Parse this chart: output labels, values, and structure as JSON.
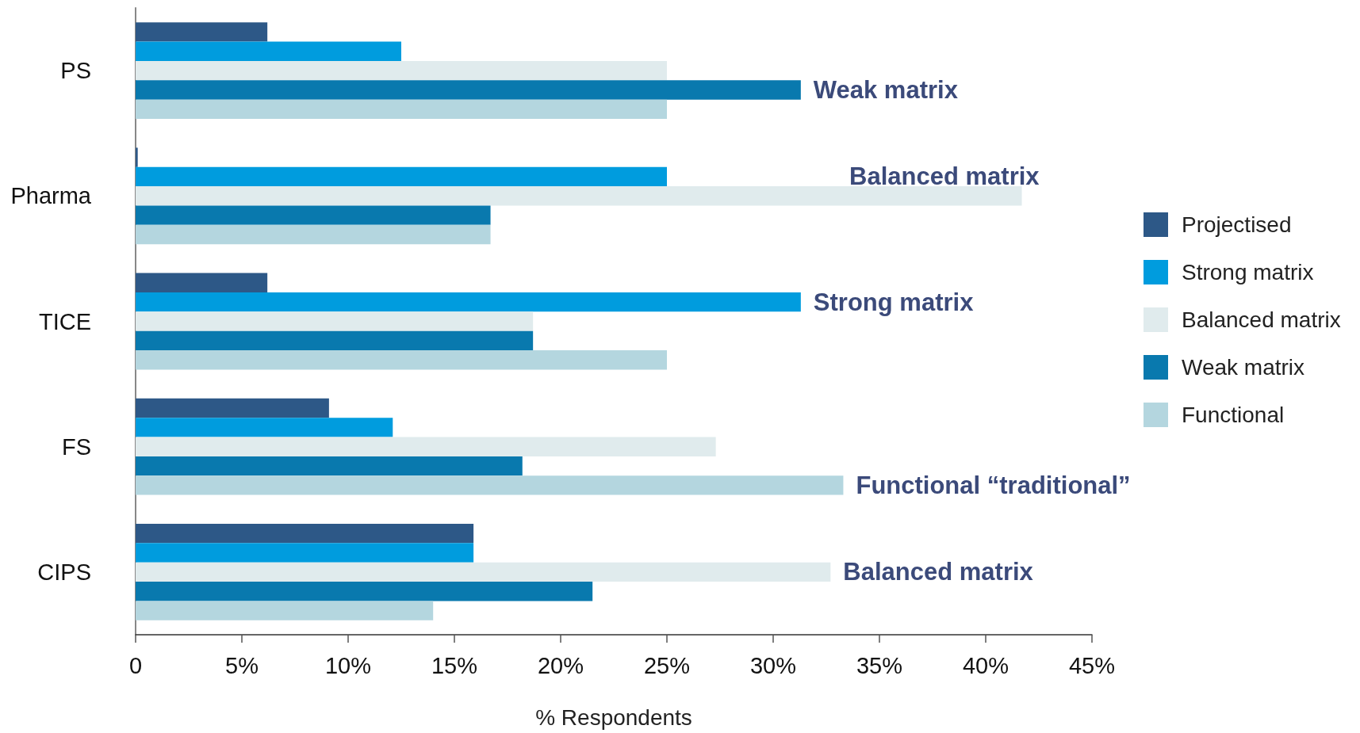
{
  "chart_data": {
    "type": "bar",
    "orientation": "horizontal",
    "xlabel": "% Respondents",
    "categories": [
      "PS",
      "Pharma",
      "TICE",
      "FS",
      "CIPS"
    ],
    "series": [
      {
        "name": "Projectised",
        "color": "#2d5887",
        "values": [
          6.2,
          0.1,
          6.2,
          9.1,
          15.9
        ]
      },
      {
        "name": "Strong matrix",
        "color": "#009cde",
        "values": [
          12.5,
          25,
          31.3,
          12.1,
          15.9
        ]
      },
      {
        "name": "Balanced matrix",
        "color": "#e0ebed",
        "values": [
          25,
          41.7,
          18.7,
          27.3,
          32.7
        ]
      },
      {
        "name": "Weak matrix",
        "color": "#0979ae",
        "values": [
          31.3,
          16.7,
          18.7,
          18.2,
          21.5
        ]
      },
      {
        "name": "Functional",
        "color": "#b4d6df",
        "values": [
          25,
          16.7,
          25,
          33.3,
          14
        ]
      }
    ],
    "xlim": [
      0,
      45
    ],
    "xticks": [
      0,
      {
        "value": 5,
        "label": "5%"
      },
      {
        "value": 10,
        "label": "10%"
      },
      {
        "value": 15,
        "label": "15%"
      },
      {
        "value": 20,
        "label": "20%"
      },
      {
        "value": 25,
        "label": "25%"
      },
      {
        "value": 30,
        "label": "30%"
      },
      {
        "value": 35,
        "label": "35%"
      },
      {
        "value": 40,
        "label": "40%"
      },
      {
        "value": 45,
        "label": "45%"
      }
    ],
    "legend": "right",
    "annotations": [
      "Weak matrix",
      "Balanced matrix",
      "Strong matrix",
      "Functional “traditional”",
      "Balanced matrix"
    ]
  }
}
